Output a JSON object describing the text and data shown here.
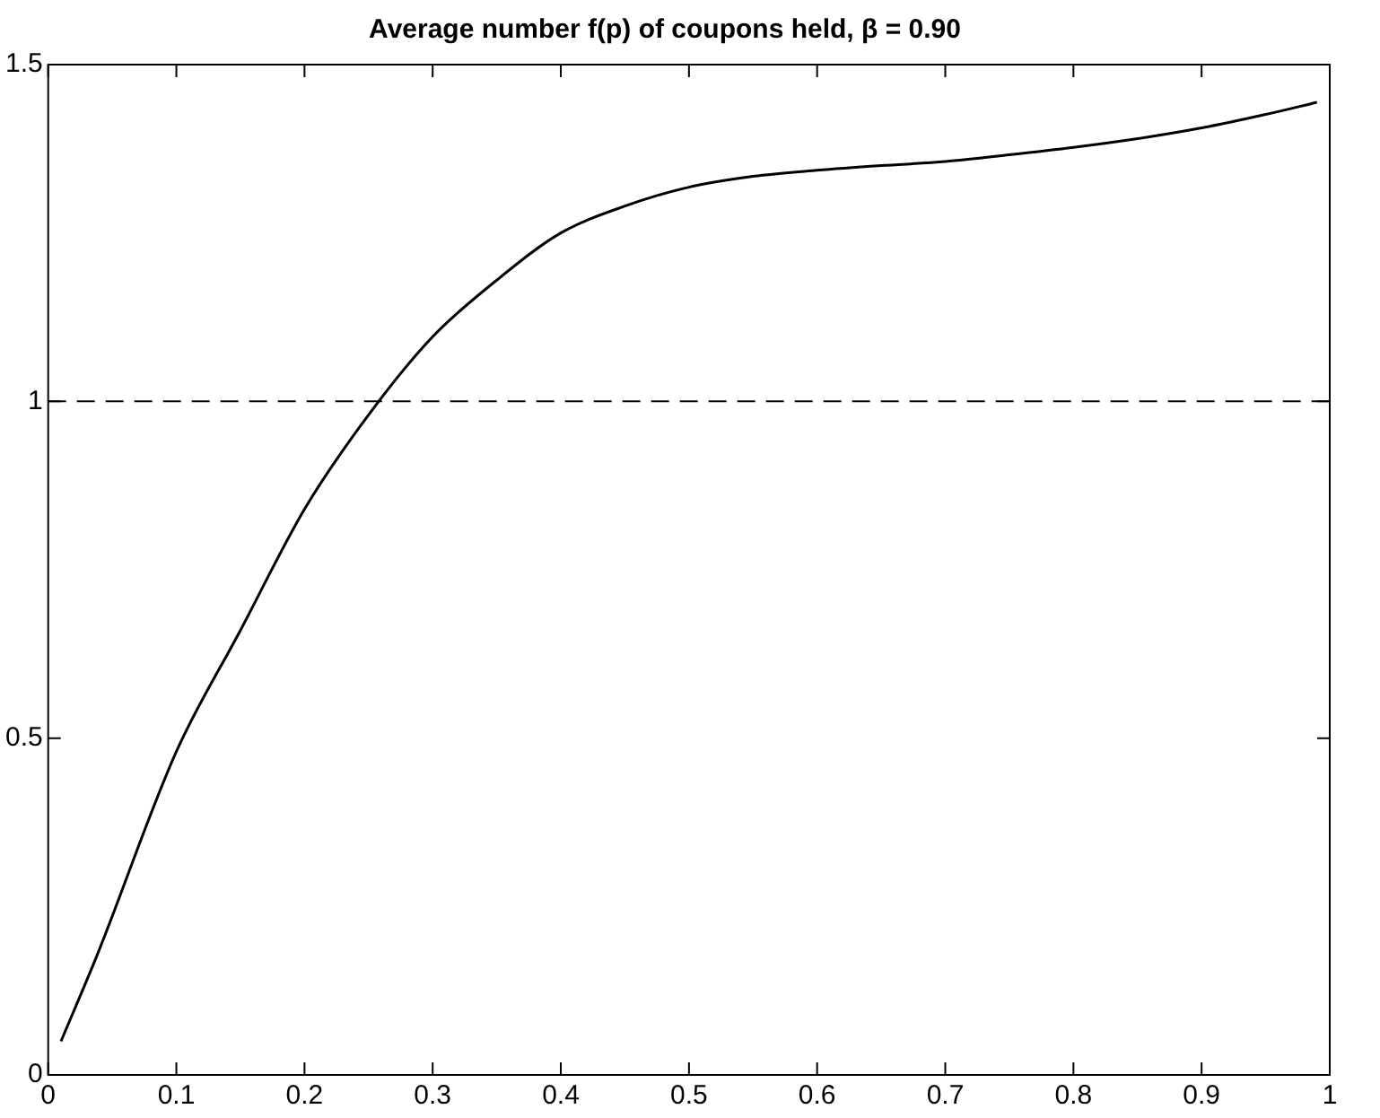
{
  "chart_data": {
    "type": "line",
    "title": "Average number f(p) of coupons held, β = 0.90",
    "x": [
      0.01,
      0.038,
      0.1,
      0.15,
      0.2,
      0.25,
      0.3,
      0.35,
      0.4,
      0.45,
      0.5,
      0.55,
      0.6,
      0.65,
      0.7,
      0.75,
      0.8,
      0.85,
      0.9,
      0.95,
      0.99
    ],
    "series": [
      {
        "color": "#000000",
        "values": [
          0.05,
          0.177,
          0.48,
          0.66,
          0.84,
          0.98,
          1.096,
          1.18,
          1.25,
          1.29,
          1.318,
          1.334,
          1.343,
          1.35,
          1.356,
          1.366,
          1.377,
          1.39,
          1.406,
          1.426,
          1.444
        ]
      }
    ],
    "xlim": [
      0,
      1
    ],
    "xticks": [
      0,
      0.1,
      0.2,
      0.3,
      0.4,
      0.5,
      0.6,
      0.7,
      0.8,
      0.9,
      1
    ],
    "ylim": [
      0,
      1.5
    ],
    "yticks": [
      0,
      0.5,
      1,
      1.5
    ],
    "ref_lines": [
      {
        "axis": "y",
        "value": 1,
        "color": "#000000",
        "line_style": "dashed"
      }
    ],
    "grid": false,
    "legend": false,
    "marker": "none",
    "line_style": "solid"
  }
}
